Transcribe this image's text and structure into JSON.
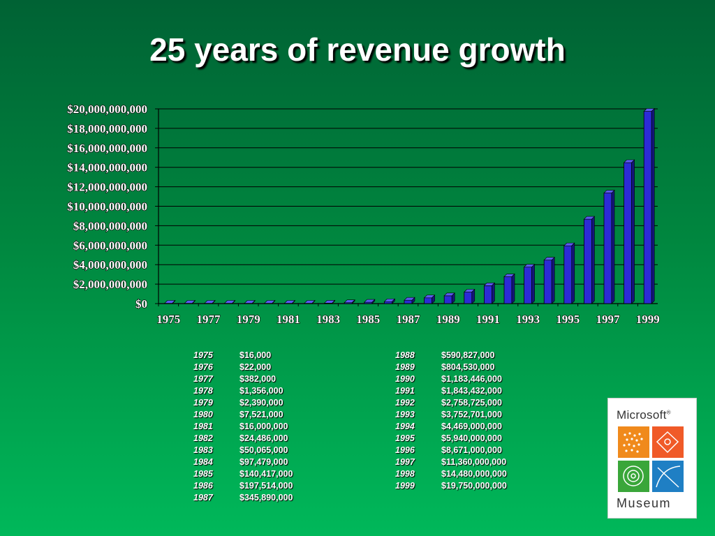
{
  "title": "25 years of revenue growth",
  "chart_data": {
    "type": "bar",
    "categories": [
      "1975",
      "1976",
      "1977",
      "1978",
      "1979",
      "1980",
      "1981",
      "1982",
      "1983",
      "1984",
      "1985",
      "1986",
      "1987",
      "1988",
      "1989",
      "1990",
      "1991",
      "1992",
      "1993",
      "1994",
      "1995",
      "1996",
      "1997",
      "1998",
      "1999"
    ],
    "values": [
      16000,
      22000,
      382000,
      1356000,
      2390000,
      7521000,
      16000000,
      24486000,
      50065000,
      97479000,
      140417000,
      197514000,
      345890000,
      590827000,
      804530000,
      1183446000,
      1843432000,
      2758725000,
      3752701000,
      4469000000,
      5940000000,
      8671000000,
      11360000000,
      14480000000,
      19750000000
    ],
    "x_tick_labels": [
      "1975",
      "1977",
      "1979",
      "1981",
      "1983",
      "1985",
      "1987",
      "1989",
      "1991",
      "1993",
      "1995",
      "1997",
      "1999"
    ],
    "y_tick_labels": [
      "$0",
      "$2,000,000,000",
      "$4,000,000,000",
      "$6,000,000,000",
      "$8,000,000,000",
      "$10,000,000,000",
      "$12,000,000,000",
      "$14,000,000,000",
      "$16,000,000,000",
      "$18,000,000,000",
      "$20,000,000,000"
    ],
    "ylim": [
      0,
      20000000000
    ],
    "grid": true,
    "bar_color": "#2b2bd6"
  },
  "table": {
    "left": [
      {
        "year": "1975",
        "value": "$16,000"
      },
      {
        "year": "1976",
        "value": "$22,000"
      },
      {
        "year": "1977",
        "value": "$382,000"
      },
      {
        "year": "1978",
        "value": "$1,356,000"
      },
      {
        "year": "1979",
        "value": "$2,390,000"
      },
      {
        "year": "1980",
        "value": "$7,521,000"
      },
      {
        "year": "1981",
        "value": "$16,000,000"
      },
      {
        "year": "1982",
        "value": "$24,486,000"
      },
      {
        "year": "1983",
        "value": "$50,065,000"
      },
      {
        "year": "1984",
        "value": "$97,479,000"
      },
      {
        "year": "1985",
        "value": "$140,417,000"
      },
      {
        "year": "1986",
        "value": "$197,514,000"
      },
      {
        "year": "1987",
        "value": "$345,890,000"
      }
    ],
    "right": [
      {
        "year": "1988",
        "value": "$590,827,000"
      },
      {
        "year": "1989",
        "value": "$804,530,000"
      },
      {
        "year": "1990",
        "value": "$1,183,446,000"
      },
      {
        "year": "1991",
        "value": "$1,843,432,000"
      },
      {
        "year": "1992",
        "value": "$2,758,725,000"
      },
      {
        "year": "1993",
        "value": "$3,752,701,000"
      },
      {
        "year": "1994",
        "value": "$4,469,000,000"
      },
      {
        "year": "1995",
        "value": "$5,940,000,000"
      },
      {
        "year": "1996",
        "value": "$8,671,000,000"
      },
      {
        "year": "1997",
        "value": "$11,360,000,000"
      },
      {
        "year": "1998",
        "value": "$14,480,000,000"
      },
      {
        "year": "1999",
        "value": "$19,750,000,000"
      }
    ]
  },
  "logo": {
    "top_text": "Microsoft",
    "reg_mark": "®",
    "bottom_text": "Museum",
    "colors": [
      "#f08a1c",
      "#f05a28",
      "#3aa63a",
      "#1f7fc4"
    ]
  }
}
